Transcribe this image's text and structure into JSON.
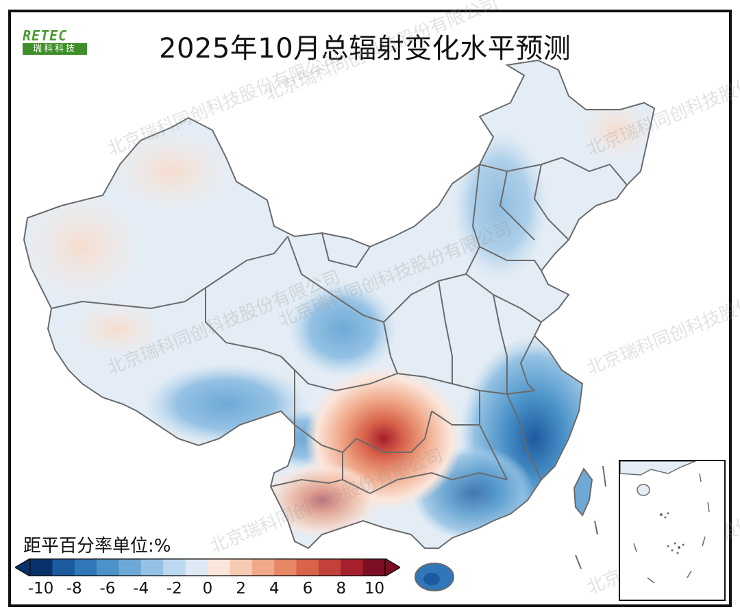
{
  "title": "2025年10月总辐射变化水平预测",
  "logo": {
    "top_text": "RETEC",
    "bottom_text": "瑞科科技"
  },
  "watermark_text": "北京瑞科同创科技股份有限公司",
  "legend": {
    "title": "距平百分率单位:%",
    "ticks": [
      "-10",
      "-8",
      "-6",
      "-4",
      "-2",
      "0",
      "2",
      "4",
      "6",
      "8",
      "10"
    ],
    "colors": [
      "#08306b",
      "#1c5a9f",
      "#2f77b8",
      "#4a92c8",
      "#6ea9d6",
      "#95c2e4",
      "#bcd8ee",
      "#dde9f4",
      "#fbe6db",
      "#f6cbb4",
      "#f0a98a",
      "#e68766",
      "#d8634b",
      "#c2413a",
      "#a51f2c",
      "#7d0d22"
    ]
  },
  "colors": {
    "near_normal": "#eaf0f6",
    "slight_positive": "#f8e9e2",
    "border": "#6a6a6a"
  }
}
